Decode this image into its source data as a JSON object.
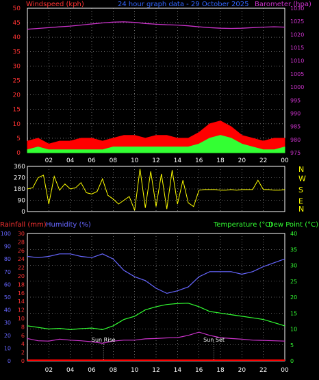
{
  "chart_data": [
    {
      "panel": "wind-baro",
      "type": "area",
      "title": "24 hour graph data - 29 October 2025",
      "left_axis_label": "Windspeed (kph)",
      "right_axis_label": "Barometer (hpa)",
      "left_ticks": [
        "0",
        "5",
        "10",
        "15",
        "20",
        "25",
        "30",
        "35",
        "40",
        "45",
        "50"
      ],
      "right_ticks": [
        "975",
        "980",
        "985",
        "990",
        "995",
        "1000",
        "1005",
        "1010",
        "1015",
        "1020",
        "1025",
        "1030"
      ],
      "ylim": [
        0,
        50
      ],
      "ylim_right": [
        975,
        1030
      ],
      "x": [
        0,
        1,
        2,
        3,
        4,
        5,
        6,
        7,
        8,
        9,
        10,
        11,
        12,
        13,
        14,
        15,
        16,
        17,
        18,
        19,
        20,
        21,
        22,
        23,
        24
      ],
      "series": [
        {
          "name": "Wind gust",
          "values": [
            4,
            5,
            3,
            4,
            4,
            5,
            5,
            4,
            5,
            6,
            6,
            5,
            6,
            6,
            5,
            5,
            7,
            10,
            11,
            9,
            6,
            5,
            4,
            5,
            5
          ]
        },
        {
          "name": "Wind speed",
          "values": [
            1,
            2,
            1,
            1,
            1,
            1,
            1,
            1,
            2,
            2,
            2,
            2,
            2,
            2,
            2,
            2,
            3,
            5,
            6,
            5,
            3,
            2,
            1,
            1,
            2
          ]
        },
        {
          "name": "Barometer",
          "values": [
            1022.0,
            1022.3,
            1022.6,
            1022.9,
            1023.2,
            1023.6,
            1024.0,
            1024.4,
            1024.7,
            1024.8,
            1024.6,
            1024.2,
            1023.9,
            1023.7,
            1023.6,
            1023.3,
            1022.9,
            1022.6,
            1022.4,
            1022.3,
            1022.4,
            1022.6,
            1022.8,
            1022.9,
            1022.8
          ]
        }
      ],
      "colors": {
        "gust": "#ff0000",
        "speed": "#33ff33",
        "baro": "#cc33cc",
        "left_axis": "#ff3333",
        "right_axis": "#cc33cc",
        "title": "#3366ff"
      },
      "grid": true
    },
    {
      "panel": "direction",
      "type": "line",
      "left_ticks": [
        "0",
        "90",
        "180",
        "270",
        "360"
      ],
      "right_ticks": [
        "N",
        "W",
        "S",
        "E",
        "N"
      ],
      "ylim": [
        0,
        360
      ],
      "x": [
        0,
        0.5,
        1,
        1.5,
        2,
        2.5,
        3,
        3.5,
        4,
        4.5,
        5,
        5.5,
        6,
        6.5,
        7,
        7.5,
        8,
        8.5,
        9,
        9.5,
        10,
        10.5,
        11,
        11.5,
        12,
        12.5,
        13,
        13.5,
        14,
        14.5,
        15,
        15.5,
        16,
        16.5,
        17,
        17.5,
        18,
        18.5,
        19,
        19.5,
        20,
        20.5,
        21,
        21.5,
        22,
        22.5,
        23,
        23.5,
        24
      ],
      "series": [
        {
          "name": "Wind direction",
          "values": [
            180,
            190,
            270,
            290,
            60,
            280,
            170,
            220,
            180,
            190,
            230,
            150,
            140,
            160,
            260,
            130,
            100,
            60,
            90,
            120,
            10,
            340,
            30,
            320,
            40,
            300,
            20,
            330,
            60,
            250,
            70,
            40,
            170,
            175,
            175,
            175,
            170,
            170,
            175,
            170,
            175,
            175,
            175,
            250,
            175,
            175,
            170,
            170,
            175
          ]
        }
      ],
      "colors": {
        "line": "#ffff00",
        "left_axis": "#ffffff",
        "right_axis": "#ffff00"
      },
      "grid": true
    },
    {
      "panel": "temp-hum-rain",
      "type": "line",
      "rain_label": "Rainfall (mm)",
      "humidity_label": "Humidity (%)",
      "temp_label": "Temperature (°C)",
      "dew_label": "Dew Point (°C)",
      "rain_ticks": [
        "0",
        "2",
        "4",
        "6",
        "8",
        "10",
        "12",
        "14",
        "16",
        "18",
        "20",
        "22",
        "24",
        "26",
        "28",
        "30"
      ],
      "humidity_ticks": [
        "0",
        "10",
        "20",
        "30",
        "40",
        "50",
        "60",
        "70",
        "80",
        "90",
        "100"
      ],
      "temp_ticks": [
        "0",
        "5",
        "10",
        "15",
        "20",
        "25",
        "30",
        "35",
        "40"
      ],
      "x_ticks": [
        "02",
        "04",
        "06",
        "08",
        "10",
        "12",
        "14",
        "16",
        "18",
        "20",
        "22",
        "00"
      ],
      "ylim": [
        0,
        40
      ],
      "x": [
        0,
        1,
        2,
        3,
        4,
        5,
        6,
        7,
        8,
        9,
        10,
        11,
        12,
        13,
        14,
        15,
        16,
        17,
        18,
        19,
        20,
        21,
        22,
        23,
        24
      ],
      "series": [
        {
          "name": "Humidity",
          "values": [
            82,
            81,
            82,
            84,
            84,
            82,
            81,
            84,
            80,
            71,
            66,
            63,
            57,
            53,
            55,
            58,
            66,
            70,
            70,
            70,
            68,
            70,
            74,
            77,
            80
          ]
        },
        {
          "name": "Temperature",
          "values": [
            11,
            10.5,
            10,
            10.2,
            9.8,
            10.1,
            10.3,
            9.8,
            11,
            13,
            14,
            16,
            17,
            17.7,
            18,
            18.1,
            17,
            15.5,
            15,
            14.5,
            14,
            13.5,
            13,
            12,
            11
          ]
        },
        {
          "name": "Dew Point",
          "values": [
            7,
            6.3,
            6.2,
            6.8,
            6.5,
            6.3,
            6,
            5.5,
            6.2,
            6.5,
            6.5,
            6.9,
            7,
            7.2,
            7.3,
            8,
            9,
            8,
            7.3,
            7,
            6.8,
            6.5,
            6.4,
            6.3,
            6.2
          ]
        },
        {
          "name": "Rainfall",
          "values": [
            0,
            0,
            0,
            0,
            0,
            0,
            0,
            0,
            0,
            0,
            0,
            0,
            0,
            0,
            0,
            0,
            0,
            0,
            0,
            0,
            0,
            0,
            0,
            0,
            0
          ]
        }
      ],
      "annotations": [
        {
          "label": "Sun Rise",
          "x": 7.1
        },
        {
          "label": "Sun Set",
          "x": 17.4
        }
      ],
      "colors": {
        "humidity": "#6666ff",
        "temp": "#33ff33",
        "dew": "#cc33cc",
        "rain": "#ff0000",
        "rain_axis": "#ff3333",
        "temp_axis": "#33ff33"
      },
      "grid": true
    }
  ]
}
